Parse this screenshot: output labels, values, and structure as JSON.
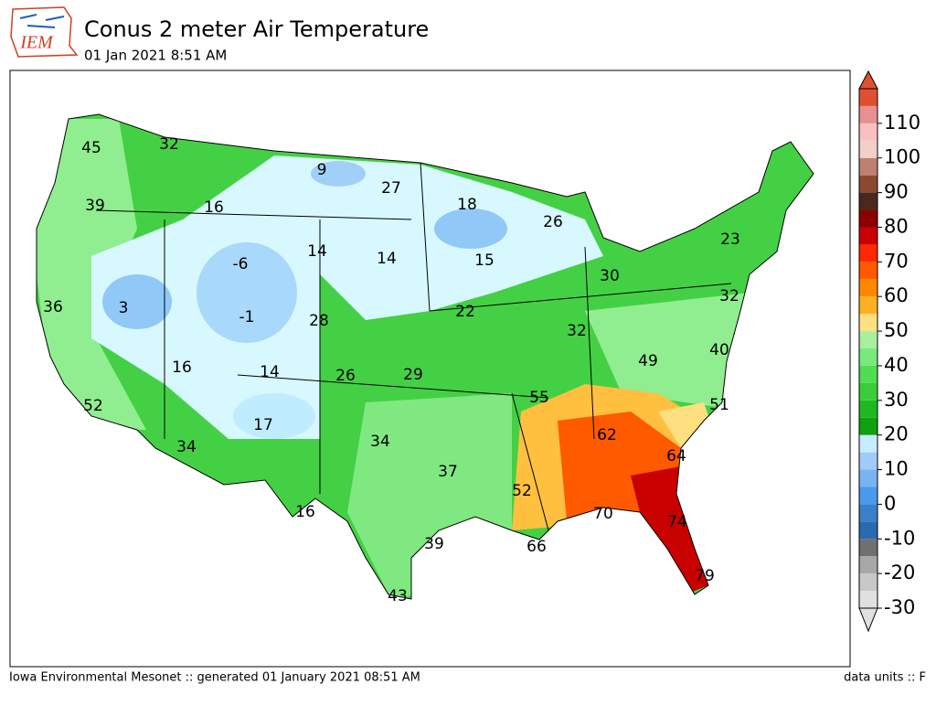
{
  "header": {
    "logo": "IEM",
    "title": "Conus 2 meter Air Temperature",
    "subtitle": "01 Jan 2021 8:51 AM"
  },
  "footer": {
    "left": "Iowa Environmental Mesonet :: generated 01 January 2021 08:51 AM",
    "right": "data units :: F"
  },
  "colorbar": {
    "range": [
      -30,
      120
    ],
    "ticks": [
      -30,
      -20,
      -10,
      0,
      10,
      20,
      30,
      40,
      50,
      60,
      70,
      80,
      90,
      100,
      110
    ],
    "colors": [
      "#e0e0e0",
      "#c8c8c8",
      "#a8a8a8",
      "#707070",
      "#2a6ab0",
      "#3a80c8",
      "#4a9aec",
      "#78b4f0",
      "#a0ccf8",
      "#c8ecff",
      "#10a010",
      "#20b820",
      "#3acc3a",
      "#50dd50",
      "#7ae87a",
      "#a8f0a0",
      "#ffe080",
      "#ffb020",
      "#ff8800",
      "#ff5a00",
      "#ff2800",
      "#c80000",
      "#8b0000",
      "#4a2820",
      "#8b4a30",
      "#c08070",
      "#f0d0c8",
      "#f8c0c0",
      "#e89090",
      "#e05030"
    ]
  },
  "map": {
    "labels": [
      45,
      32,
      9,
      27,
      18,
      26,
      39,
      16,
      14,
      14,
      15,
      -6,
      30,
      23,
      3,
      -1,
      28,
      22,
      32,
      32,
      36,
      40,
      49,
      16,
      14,
      26,
      29,
      55,
      51,
      52,
      62,
      17,
      34,
      34,
      64,
      37,
      52,
      16,
      70,
      74,
      39,
      66,
      79,
      43
    ]
  }
}
